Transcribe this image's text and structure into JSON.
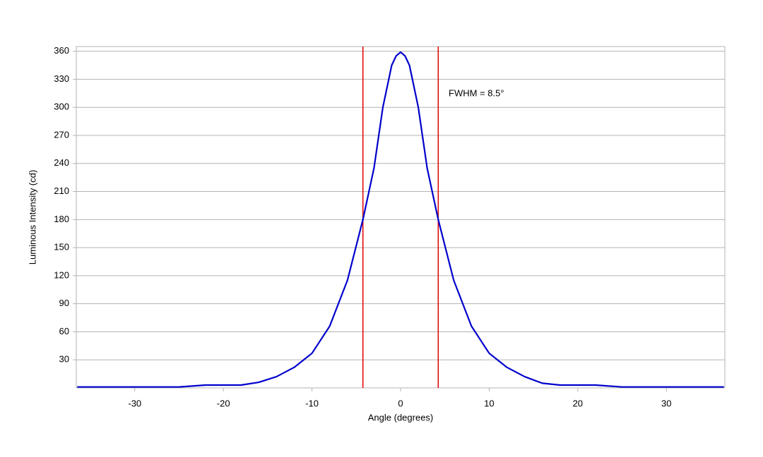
{
  "chart_data": {
    "type": "line",
    "x_label": "Angle (degrees)",
    "y_label": "Luminous Intensity (cd)",
    "annotation": "FWHM = 8.5°",
    "x": [
      -36.5,
      -25,
      -22,
      -18,
      -16,
      -14,
      -12,
      -10,
      -8,
      -6,
      -4.25,
      -3,
      -2,
      -1,
      -0.5,
      0,
      0.5,
      1,
      2,
      3,
      4.25,
      6,
      8,
      10,
      12,
      14,
      16,
      18,
      22,
      25,
      36.5
    ],
    "series": [
      {
        "name": "Luminous Intensity",
        "color": "#0000cc",
        "values": [
          1,
          1,
          3,
          3,
          6,
          12,
          22,
          37,
          66,
          115,
          180,
          235,
          300,
          345,
          355,
          359,
          355,
          345,
          300,
          235,
          180,
          115,
          66,
          37,
          22,
          12,
          5,
          3,
          3,
          1,
          1
        ]
      }
    ],
    "markers": {
      "color": "#e00000",
      "x": [
        -4.25,
        4.25
      ]
    },
    "xlim": [
      -36.6,
      36.6
    ],
    "ylim": [
      0,
      365
    ],
    "xticks": [
      -30,
      -20,
      -10,
      0,
      10,
      20,
      30
    ],
    "yticks": [
      30,
      60,
      90,
      120,
      150,
      180,
      210,
      240,
      270,
      300,
      330,
      360
    ],
    "grid": true
  }
}
